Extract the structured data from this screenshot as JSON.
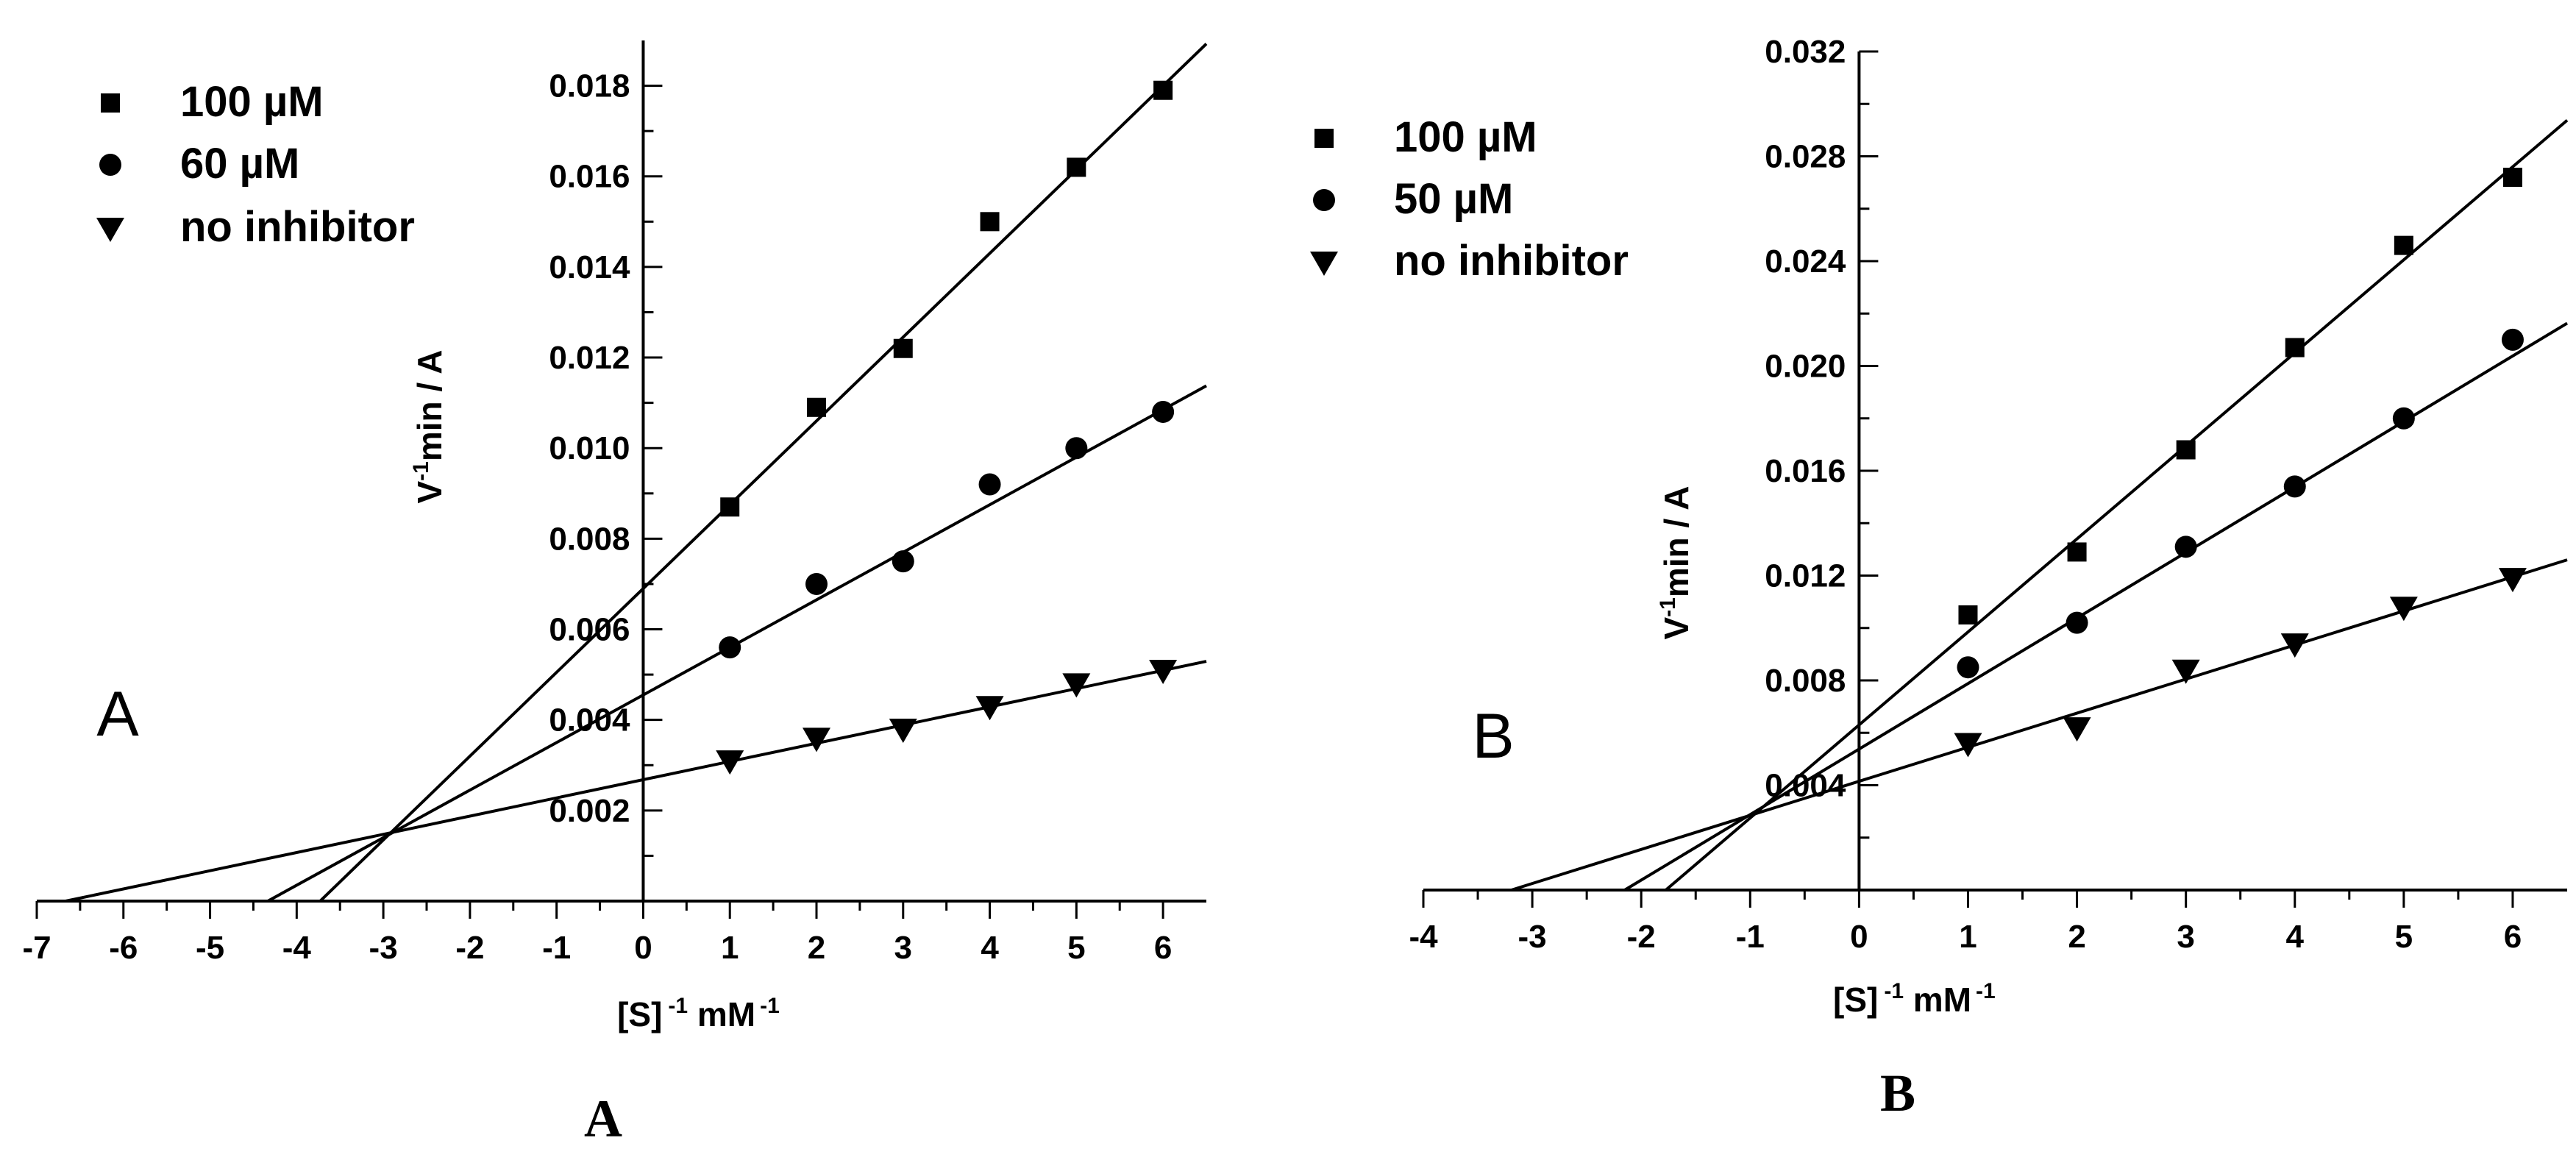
{
  "chart_data": [
    {
      "type": "scatter",
      "panel_label": "A",
      "caption": "A",
      "xlabel": {
        "main": "[S]",
        "sup1": "-1",
        "mid": " mM",
        "sup2": "-1"
      },
      "ylabel": {
        "main": "V",
        "sup": "-1",
        "rest": "min / A"
      },
      "xlim": [
        -7,
        6.5
      ],
      "ylim": [
        0,
        0.019
      ],
      "xticks": [
        -7,
        -6,
        -5,
        -4,
        -3,
        -2,
        -1,
        0,
        1,
        2,
        3,
        4,
        5,
        6
      ],
      "xtick_labels": [
        "-7",
        "-6",
        "-5",
        "-4",
        "-3",
        "-2",
        "-1",
        "0",
        "1",
        "2",
        "3",
        "4",
        "5",
        "6"
      ],
      "yticks": [
        0.002,
        0.004,
        0.006,
        0.008,
        0.01,
        0.012,
        0.014,
        0.016,
        0.018
      ],
      "ytick_labels": [
        "0.002",
        "0.004",
        "0.006",
        "0.008",
        "0.010",
        "0.012",
        "0.014",
        "0.016",
        "0.018"
      ],
      "legend": [
        "100 µM",
        "60 µM",
        "no inhibitor"
      ],
      "series": [
        {
          "name": "100 µM",
          "marker": "square",
          "x": [
            1,
            2,
            3,
            4,
            5,
            6
          ],
          "y": [
            0.0087,
            0.0109,
            0.0122,
            0.015,
            0.0162,
            0.0179
          ],
          "fit": {
            "slope": 0.00185,
            "intercept": 0.0069
          }
        },
        {
          "name": "60 µM",
          "marker": "circle",
          "x": [
            1,
            2,
            3,
            4,
            5,
            6
          ],
          "y": [
            0.0056,
            0.007,
            0.0075,
            0.0092,
            0.01,
            0.0108
          ],
          "fit": {
            "slope": 0.00105,
            "intercept": 0.00455
          }
        },
        {
          "name": "no inhibitor",
          "marker": "triangle-down",
          "x": [
            1,
            2,
            3,
            4,
            5,
            6
          ],
          "y": [
            0.0031,
            0.0036,
            0.0038,
            0.0043,
            0.0048,
            0.0051
          ],
          "fit": {
            "slope": 0.000402,
            "intercept": 0.00268
          }
        }
      ]
    },
    {
      "type": "scatter",
      "panel_label": "B",
      "caption": "B",
      "xlabel": {
        "main": "[S]",
        "sup1": "-1",
        "mid": " mM",
        "sup2": "-1"
      },
      "ylabel": {
        "main": "V",
        "sup": "-1",
        "rest": "min / A"
      },
      "xlim": [
        -4,
        6.5
      ],
      "ylim": [
        0,
        0.032
      ],
      "xticks": [
        -4,
        -3,
        -2,
        -1,
        0,
        1,
        2,
        3,
        4,
        5,
        6
      ],
      "xtick_labels": [
        "-4",
        "-3",
        "-2",
        "-1",
        "0",
        "1",
        "2",
        "3",
        "4",
        "5",
        "6"
      ],
      "yticks": [
        0.004,
        0.008,
        0.012,
        0.016,
        0.02,
        0.024,
        0.028,
        0.032
      ],
      "ytick_labels": [
        "0.004",
        "0.008",
        "0.012",
        "0.016",
        "0.020",
        "0.024",
        "0.028",
        "0.032"
      ],
      "legend": [
        "100 µM",
        "50 µM",
        "no inhibitor"
      ],
      "series": [
        {
          "name": "100 µM",
          "marker": "square",
          "x": [
            1,
            2,
            3,
            4,
            5,
            6
          ],
          "y": [
            0.0105,
            0.0129,
            0.0168,
            0.0207,
            0.0246,
            0.0272
          ],
          "fit": {
            "slope": 0.00355,
            "intercept": 0.0063
          }
        },
        {
          "name": "50 µM",
          "marker": "circle",
          "x": [
            1,
            2,
            3,
            4,
            5,
            6
          ],
          "y": [
            0.0085,
            0.0102,
            0.0131,
            0.0154,
            0.018,
            0.021
          ],
          "fit": {
            "slope": 0.0025,
            "intercept": 0.00538
          }
        },
        {
          "name": "no inhibitor",
          "marker": "triangle-down",
          "x": [
            1,
            2,
            3,
            4,
            5,
            6
          ],
          "y": [
            0.0056,
            0.0062,
            0.0084,
            0.0094,
            0.0108,
            0.0119
          ],
          "fit": {
            "slope": 0.0013,
            "intercept": 0.00415
          }
        }
      ]
    }
  ]
}
